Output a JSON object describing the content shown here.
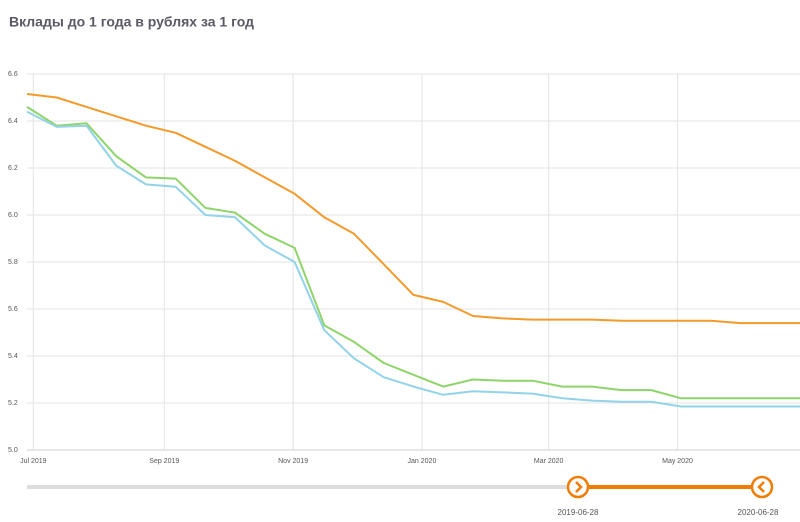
{
  "chart_data": {
    "type": "line",
    "title": "Вклады до 1 года в рублях за 1 год",
    "xlim": [
      "2019-06-28",
      "2020-06-28"
    ],
    "xticks": [
      {
        "value": "2019-07",
        "label": "Jul 2019"
      },
      {
        "value": "2019-09",
        "label": "Sep 2019"
      },
      {
        "value": "2019-11",
        "label": "Nov 2019"
      },
      {
        "value": "2020-01",
        "label": "Jan 2020"
      },
      {
        "value": "2020-03",
        "label": "Mar 2020"
      },
      {
        "value": "2020-05",
        "label": "May 2020"
      }
    ],
    "ylim": [
      5,
      6.6
    ],
    "yticks": [
      {
        "value": 5,
        "label": "5.0"
      },
      5.2,
      5.4,
      5.6,
      5.8,
      {
        "value": 6,
        "label": "6.0"
      },
      6.2,
      6.4,
      6.6
    ],
    "grid": true,
    "series": [
      {
        "color": "#f39a2b",
        "values": [
          6.515,
          6.5,
          6.46,
          6.42,
          6.38,
          6.35,
          6.29,
          6.23,
          6.16,
          6.09,
          5.99,
          5.92,
          5.79,
          5.66,
          5.63,
          5.57,
          5.56,
          5.555,
          5.555,
          5.555,
          5.55,
          5.55,
          5.55,
          5.55,
          5.54,
          5.54,
          5.54
        ]
      },
      {
        "color": "#8fd46a",
        "values": [
          6.46,
          6.38,
          6.39,
          6.25,
          6.16,
          6.155,
          6.03,
          6.01,
          5.92,
          5.86,
          5.53,
          5.46,
          5.37,
          5.32,
          5.27,
          5.3,
          5.295,
          5.295,
          5.27,
          5.27,
          5.255,
          5.255,
          5.22,
          5.22,
          5.22,
          5.22,
          5.22
        ]
      },
      {
        "color": "#93d3e8",
        "values": [
          6.44,
          6.375,
          6.38,
          6.21,
          6.13,
          6.12,
          6.0,
          5.99,
          5.87,
          5.8,
          5.51,
          5.39,
          5.31,
          5.27,
          5.235,
          5.25,
          5.245,
          5.24,
          5.22,
          5.21,
          5.205,
          5.205,
          5.185,
          5.185,
          5.185,
          5.185,
          5.185
        ]
      }
    ]
  },
  "range_slider": {
    "start": "2019-06-28",
    "end": "2020-06-28"
  }
}
